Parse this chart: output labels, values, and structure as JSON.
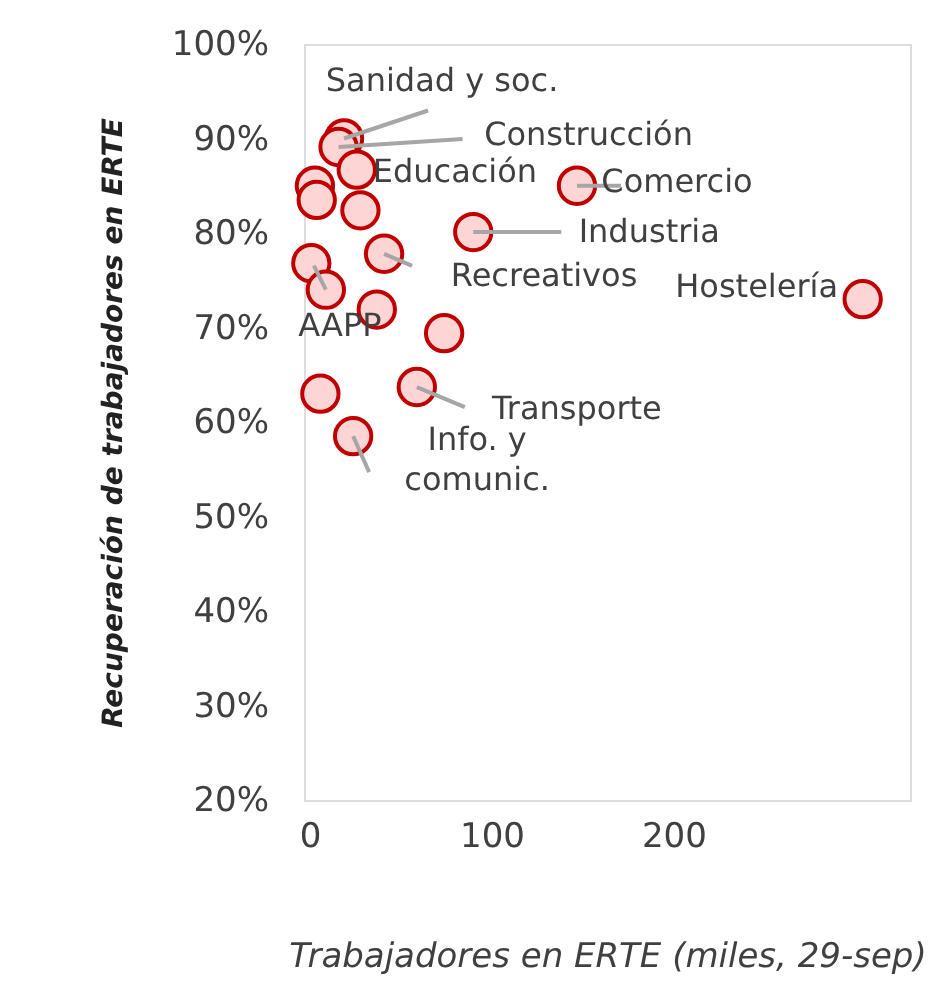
{
  "chart_data": {
    "type": "scatter",
    "xlabel": "Trabajadores en ERTE (miles, 29-sep)",
    "ylabel": "Recuperación de trabajadores en ERTE",
    "x": [
      19,
      16,
      26,
      3,
      4,
      28,
      90,
      147,
      41,
      1,
      9,
      37,
      74,
      59,
      6,
      24,
      304
    ],
    "series": [
      {
        "color": "#c00000",
        "values": [
          90.0,
          89.1,
          86.7,
          85.0,
          83.5,
          82.4,
          80.1,
          85.0,
          77.8,
          76.8,
          74.0,
          71.9,
          69.4,
          63.7,
          63.0,
          58.5,
          73.0
        ]
      }
    ],
    "marker": "circle",
    "xlim": [
      -3,
      330
    ],
    "ylim": [
      20,
      100
    ],
    "xticks": [
      0,
      100,
      200
    ],
    "yticks": [
      {
        "value": 20,
        "label": "20%"
      },
      {
        "value": 30,
        "label": "30%"
      },
      {
        "value": 40,
        "label": "40%"
      },
      {
        "value": 50,
        "label": "50%"
      },
      {
        "value": 60,
        "label": "60%"
      },
      {
        "value": 70,
        "label": "70%"
      },
      {
        "value": 80,
        "label": "80%"
      },
      {
        "value": 90,
        "label": "90%"
      },
      {
        "value": 100,
        "label": "100%"
      }
    ],
    "grid": false,
    "legend": false,
    "annotations": [
      {
        "text": "Sanidad y soc.",
        "x": 19,
        "y": 90.0
      },
      {
        "text": "Construcción",
        "x": 16,
        "y": 89.1
      },
      {
        "text": "Educación",
        "x": 3,
        "y": 85.0
      },
      {
        "text": "Comercio",
        "x": 147,
        "y": 85.0
      },
      {
        "text": "Industria",
        "x": 90,
        "y": 80.1
      },
      {
        "text": "Recreativos",
        "x": 41,
        "y": 77.8
      },
      {
        "text": "AAPP",
        "x": 9,
        "y": 74.0
      },
      {
        "text": "Transporte",
        "x": 59,
        "y": 63.7
      },
      {
        "text": "Info. y\ncomunic.",
        "x": 24,
        "y": 58.5
      },
      {
        "text": "Hostelería",
        "x": 304,
        "y": 73.0
      }
    ]
  }
}
